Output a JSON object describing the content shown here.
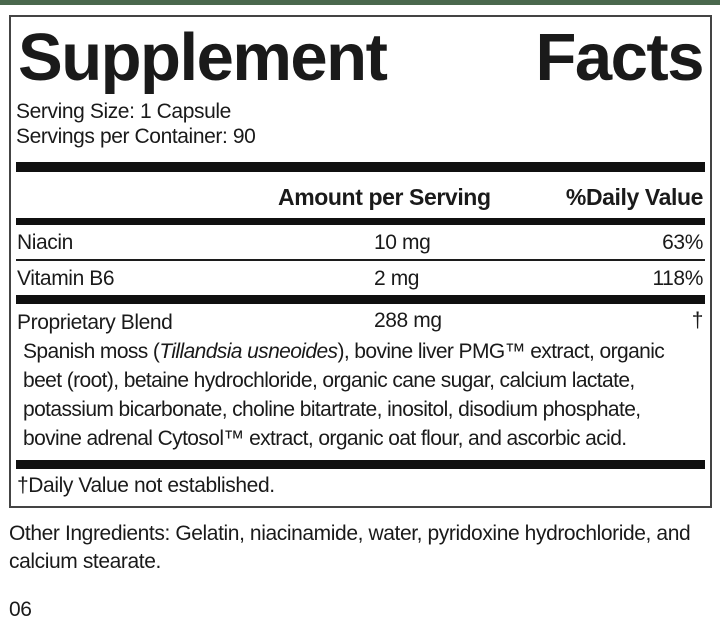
{
  "label": {
    "title": "Supplement Facts",
    "title_words": [
      "Supplement",
      "Facts"
    ],
    "serving_size": "Serving Size: 1 Capsule",
    "servings_per_container": "Servings per Container: 90",
    "header": {
      "amount": "Amount per Serving",
      "daily_value": "%Daily Value"
    },
    "rows": [
      {
        "name": "Niacin",
        "amount": "10 mg",
        "dv": "63%"
      },
      {
        "name": "Vitamin B6",
        "amount": "2 mg",
        "dv": "118%"
      },
      {
        "name": "Proprietary Blend",
        "amount": "288 mg",
        "dv": "†"
      }
    ],
    "blend_description": {
      "part1": "Spanish moss (",
      "italic": "Tillandsia usneoides",
      "part2": "), bovine liver PMG™ extract, organic beet (root), betaine hydrochloride, organic cane sugar, calcium lactate, potassium bicarbonate, choline bitartrate, inositol, disodium phosphate, bovine adrenal Cytosol™ extract, organic oat flour, and ascorbic acid."
    },
    "footnote": "†Daily Value not established.",
    "other_ingredients": "Other Ingredients: Gelatin, niacinamide, water, pyridoxine hydrochloride, and calcium stearate.",
    "page_code": "06"
  },
  "colors": {
    "accent_green": "#4a684d",
    "text": "#1a1a1a",
    "rule_black": "#101010"
  }
}
